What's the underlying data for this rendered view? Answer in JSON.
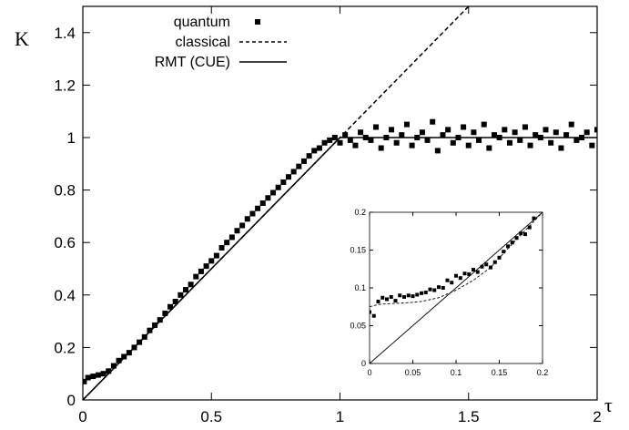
{
  "chart_data": [
    {
      "type": "scatter",
      "title": "",
      "xlabel": "τ",
      "ylabel": "K",
      "xlim": [
        0,
        2
      ],
      "ylim": [
        0,
        1.5
      ],
      "x_ticks": [
        "0",
        "0.5",
        "1",
        "1.5",
        "2"
      ],
      "y_ticks": [
        "0",
        "0.2",
        "0.4",
        "0.6",
        "0.8",
        "1",
        "1.2",
        "1.4"
      ],
      "x_tick_values": [
        0,
        0.5,
        1,
        1.5,
        2
      ],
      "y_tick_values": [
        0,
        0.2,
        0.4,
        0.6,
        0.8,
        1,
        1.2,
        1.4
      ],
      "legend_position": "top-left",
      "grid": false,
      "series": [
        {
          "name": "quantum",
          "style": "square-markers",
          "x": [
            0.005,
            0.02,
            0.04,
            0.06,
            0.08,
            0.1,
            0.12,
            0.14,
            0.16,
            0.18,
            0.2,
            0.22,
            0.24,
            0.26,
            0.28,
            0.3,
            0.32,
            0.34,
            0.36,
            0.38,
            0.4,
            0.42,
            0.44,
            0.46,
            0.48,
            0.5,
            0.52,
            0.54,
            0.56,
            0.58,
            0.6,
            0.62,
            0.64,
            0.66,
            0.68,
            0.7,
            0.72,
            0.74,
            0.76,
            0.78,
            0.8,
            0.82,
            0.84,
            0.86,
            0.88,
            0.9,
            0.92,
            0.94,
            0.96,
            0.98,
            1.0,
            1.02,
            1.04,
            1.06,
            1.08,
            1.1,
            1.12,
            1.14,
            1.16,
            1.18,
            1.2,
            1.22,
            1.24,
            1.26,
            1.28,
            1.3,
            1.32,
            1.34,
            1.36,
            1.38,
            1.4,
            1.42,
            1.44,
            1.46,
            1.48,
            1.5,
            1.52,
            1.54,
            1.56,
            1.58,
            1.6,
            1.62,
            1.64,
            1.66,
            1.68,
            1.7,
            1.72,
            1.74,
            1.76,
            1.78,
            1.8,
            1.82,
            1.84,
            1.86,
            1.88,
            1.9,
            1.92,
            1.94,
            1.96,
            1.98,
            2.0
          ],
          "y": [
            0.07,
            0.085,
            0.09,
            0.095,
            0.1,
            0.11,
            0.13,
            0.15,
            0.165,
            0.18,
            0.2,
            0.22,
            0.24,
            0.265,
            0.285,
            0.305,
            0.33,
            0.355,
            0.375,
            0.4,
            0.42,
            0.44,
            0.47,
            0.49,
            0.51,
            0.53,
            0.55,
            0.58,
            0.6,
            0.62,
            0.645,
            0.665,
            0.69,
            0.71,
            0.73,
            0.75,
            0.77,
            0.79,
            0.81,
            0.83,
            0.85,
            0.87,
            0.89,
            0.91,
            0.93,
            0.95,
            0.96,
            0.98,
            0.99,
            1.0,
            0.98,
            1.01,
            0.99,
            0.97,
            1.02,
            1.0,
            0.99,
            1.04,
            0.96,
            1.0,
            1.03,
            0.98,
            1.01,
            1.05,
            0.97,
            1.0,
            1.02,
            0.99,
            1.06,
            0.95,
            1.01,
            1.03,
            0.98,
            1.0,
            1.04,
            0.97,
            1.02,
            0.99,
            1.05,
            0.96,
            1.01,
            1.0,
            1.03,
            0.98,
            1.02,
            0.99,
            1.04,
            0.97,
            1.01,
            1.0,
            1.03,
            0.98,
            1.02,
            0.96,
            1.01,
            1.05,
            0.99,
            1.0,
            1.02,
            0.97,
            1.03
          ]
        },
        {
          "name": "classical",
          "style": "dashed",
          "x": [
            0,
            1.5
          ],
          "y": [
            0,
            1.5
          ]
        },
        {
          "name": "RMT (CUE)",
          "style": "solid",
          "x": [
            0,
            1,
            2
          ],
          "y": [
            0,
            1,
            1
          ]
        }
      ]
    },
    {
      "type": "scatter",
      "title": "",
      "xlabel": "",
      "ylabel": "",
      "xlim": [
        0,
        0.2
      ],
      "ylim": [
        0,
        0.2
      ],
      "x_ticks": [
        "0",
        "0.05",
        "0.1",
        "0.15",
        "0.2"
      ],
      "y_ticks": [
        "0",
        "0.05",
        "0.1",
        "0.15",
        "0.2"
      ],
      "x_tick_values": [
        0,
        0.05,
        0.1,
        0.15,
        0.2
      ],
      "y_tick_values": [
        0,
        0.05,
        0.1,
        0.15,
        0.2
      ],
      "grid": false,
      "series": [
        {
          "name": "quantum",
          "style": "square-markers",
          "x": [
            0.0,
            0.005,
            0.01,
            0.015,
            0.02,
            0.025,
            0.03,
            0.035,
            0.04,
            0.045,
            0.05,
            0.055,
            0.06,
            0.065,
            0.07,
            0.075,
            0.08,
            0.085,
            0.09,
            0.095,
            0.1,
            0.105,
            0.11,
            0.115,
            0.12,
            0.125,
            0.13,
            0.135,
            0.14,
            0.145,
            0.15,
            0.155,
            0.16,
            0.165,
            0.17,
            0.175,
            0.18,
            0.185,
            0.19
          ],
          "y": [
            0.068,
            0.063,
            0.082,
            0.087,
            0.085,
            0.088,
            0.083,
            0.09,
            0.088,
            0.09,
            0.089,
            0.091,
            0.093,
            0.094,
            0.098,
            0.097,
            0.101,
            0.1,
            0.11,
            0.107,
            0.116,
            0.113,
            0.119,
            0.118,
            0.124,
            0.121,
            0.128,
            0.131,
            0.127,
            0.134,
            0.14,
            0.148,
            0.155,
            0.16,
            0.166,
            0.172,
            0.171,
            0.18,
            0.192
          ]
        },
        {
          "name": "classical",
          "style": "dashed",
          "x": [
            0,
            0.01,
            0.02,
            0.04,
            0.06,
            0.08,
            0.1,
            0.12,
            0.14,
            0.16,
            0.18,
            0.2
          ],
          "y": [
            0.075,
            0.078,
            0.079,
            0.08,
            0.082,
            0.087,
            0.097,
            0.11,
            0.127,
            0.152,
            0.176,
            0.2
          ]
        },
        {
          "name": "RMT (CUE)",
          "style": "solid",
          "x": [
            0,
            0.2
          ],
          "y": [
            0,
            0.2
          ]
        }
      ]
    }
  ]
}
